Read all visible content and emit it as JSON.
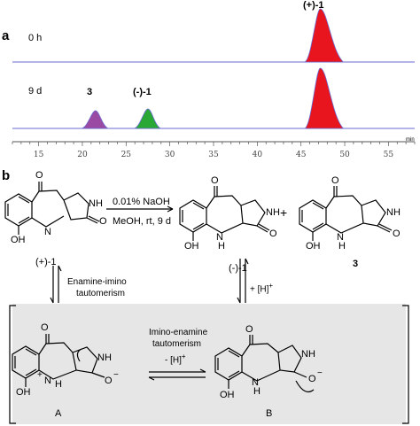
{
  "panel_a": {
    "label": "a",
    "trace_top_label": "0 h",
    "trace_bottom_label": "9 d",
    "peak_plus1": "(+)-1",
    "peak_3": "3",
    "peak_minus1": "(-)-1",
    "axis_unit_glyph": "min",
    "chart_data": {
      "type": "area",
      "x_ticks": [
        15,
        20,
        25,
        30,
        35,
        40,
        45,
        50,
        55
      ],
      "series": [
        {
          "name": "0 h",
          "peaks": [
            {
              "label": "(+)-1",
              "x": 47.2,
              "color": "#e8141e"
            }
          ]
        },
        {
          "name": "9 d",
          "peaks": [
            {
              "label": "3",
              "x": 21.5,
              "color": "#9b4aa3"
            },
            {
              "label": "(-)-1",
              "x": 27.5,
              "color": "#2aa836"
            },
            {
              "label": "(+)-1",
              "x": 47.2,
              "color": "#e8141e"
            }
          ]
        }
      ],
      "xlim": [
        12,
        58
      ],
      "grid": false
    }
  },
  "panel_b": {
    "label": "b",
    "reagent_line1": "0.01% NaOH",
    "reagent_line2": "MeOH, rt, 9 d",
    "plus_sign": "+",
    "compound_start": "(+)-1",
    "compound_mid": "(-)-1",
    "compound_right": "3",
    "eq_left_line1": "Enamine-imino",
    "eq_left_line2": "tautomerism",
    "eq_right": "+ [H]",
    "eq_right_sup": "+",
    "eq_center_line1": "Imino-enamine",
    "eq_center_line2": "tautomerism",
    "eq_center_line3": "- [H]",
    "eq_center_sup": "+",
    "label_A": "A",
    "label_B": "B",
    "box_color": "#e6e6e6",
    "atoms": {
      "O": "O",
      "NH": "NH",
      "N": "N",
      "H": "H",
      "OH": "OH",
      "Nplus": "N",
      "plus": "+",
      "Ominus": "O",
      "minus": "−"
    }
  }
}
